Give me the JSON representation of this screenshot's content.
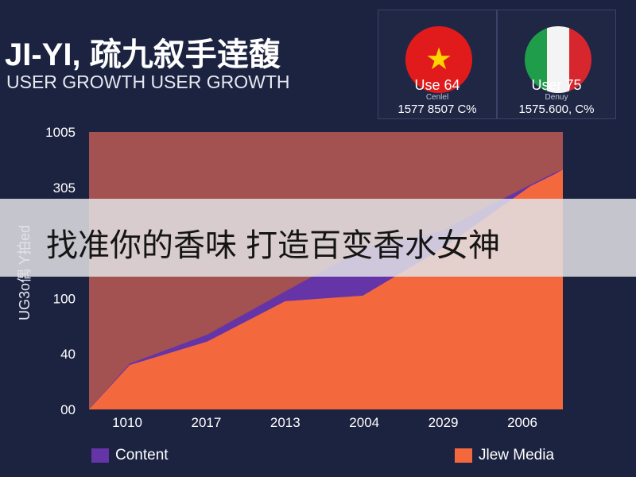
{
  "header": {
    "title": "JI-YI, 疏九叙手逹馥",
    "subtitle": "USER GROWTH USER GROWTH"
  },
  "stats": [
    {
      "flag": "vietnam-flag",
      "label": "Use 64",
      "sub": "Cenlel",
      "value": "1577 8507 C%"
    },
    {
      "flag": "italy-flag",
      "label": "User 75",
      "sub": "Denuy",
      "value": "1575.600, C%"
    }
  ],
  "overlay": {
    "text": "找准你的香味 打造百变香水女神"
  },
  "chart_data": {
    "type": "area",
    "title": "",
    "ylabel": "UG3o偶 Y拍ed",
    "y_ticks": [
      "00",
      "40",
      "100",
      "",
      "305",
      "1005"
    ],
    "x_ticks": [
      "1010",
      "2017",
      "2013",
      "2004",
      "2029",
      "2006"
    ],
    "series": [
      {
        "name": "Content",
        "color": "#6535a8",
        "values": [
          0,
          3.3,
          5.4,
          8.5,
          11.6,
          12.9,
          14.7,
          16.2,
          17.1,
          17.3
        ]
      },
      {
        "name": "Jlew Media",
        "color": "#f4683e",
        "values": [
          0,
          3.2,
          4.9,
          7.8,
          8.2,
          11.6,
          14.0,
          16.1,
          17.0,
          17.3
        ]
      }
    ],
    "x_samples": [
      0,
      0.086,
      0.25,
      0.414,
      0.578,
      0.745,
      0.845,
      0.932,
      0.985,
      1
    ],
    "ylim": [
      0,
      20
    ],
    "background_color": "#a35151",
    "legend_position": "bottom"
  }
}
